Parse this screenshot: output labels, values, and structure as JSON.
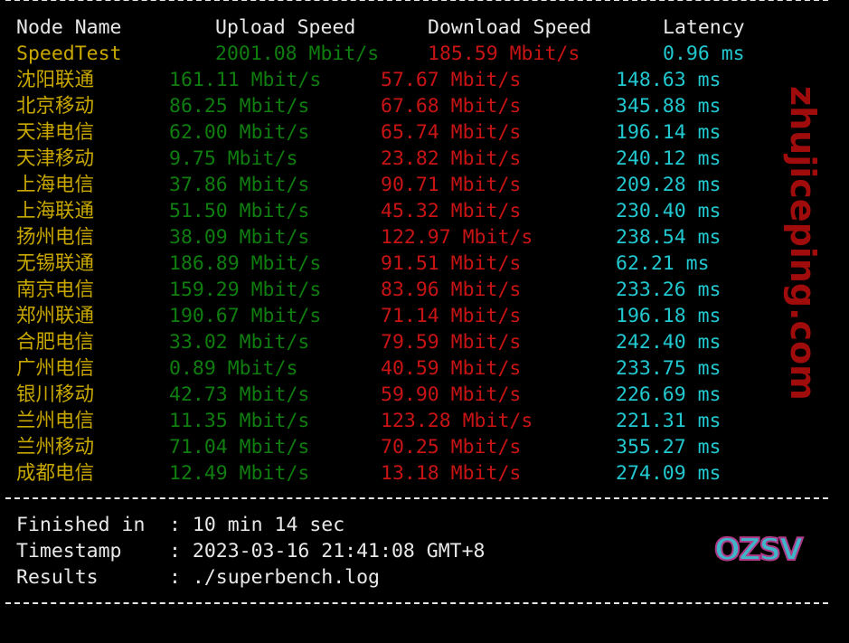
{
  "header": {
    "node": "Node Name",
    "upload": "Upload Speed",
    "download": "Download Speed",
    "latency": "Latency"
  },
  "speedtest": {
    "node": "SpeedTest",
    "upload": "2001.08 Mbit/s",
    "download": "185.59 Mbit/s",
    "latency": "0.96 ms"
  },
  "rows": [
    {
      "node": "沈阳联通",
      "upload": "161.11 Mbit/s",
      "download": "57.67 Mbit/s",
      "latency": "148.63 ms"
    },
    {
      "node": "北京移动",
      "upload": "86.25 Mbit/s",
      "download": "67.68 Mbit/s",
      "latency": "345.88 ms"
    },
    {
      "node": "天津电信",
      "upload": "62.00 Mbit/s",
      "download": "65.74 Mbit/s",
      "latency": "196.14 ms"
    },
    {
      "node": "天津移动",
      "upload": "9.75 Mbit/s",
      "download": "23.82 Mbit/s",
      "latency": "240.12 ms"
    },
    {
      "node": "上海电信",
      "upload": "37.86 Mbit/s",
      "download": "90.71 Mbit/s",
      "latency": "209.28 ms"
    },
    {
      "node": "上海联通",
      "upload": "51.50 Mbit/s",
      "download": "45.32 Mbit/s",
      "latency": "230.40 ms"
    },
    {
      "node": "扬州电信",
      "upload": "38.09 Mbit/s",
      "download": "122.97 Mbit/s",
      "latency": "238.54 ms"
    },
    {
      "node": "无锡联通",
      "upload": "186.89 Mbit/s",
      "download": "91.51 Mbit/s",
      "latency": "62.21 ms"
    },
    {
      "node": "南京电信",
      "upload": "159.29 Mbit/s",
      "download": "83.96 Mbit/s",
      "latency": "233.26 ms"
    },
    {
      "node": "郑州联通",
      "upload": "190.67 Mbit/s",
      "download": "71.14 Mbit/s",
      "latency": "196.18 ms"
    },
    {
      "node": "合肥电信",
      "upload": "33.02 Mbit/s",
      "download": "79.59 Mbit/s",
      "latency": "242.40 ms"
    },
    {
      "node": "广州电信",
      "upload": "0.89 Mbit/s",
      "download": "40.59 Mbit/s",
      "latency": "233.75 ms"
    },
    {
      "node": "银川移动",
      "upload": "42.73 Mbit/s",
      "download": "59.90 Mbit/s",
      "latency": "226.69 ms"
    },
    {
      "node": "兰州电信",
      "upload": "11.35 Mbit/s",
      "download": "123.28 Mbit/s",
      "latency": "221.31 ms"
    },
    {
      "node": "兰州移动",
      "upload": "71.04 Mbit/s",
      "download": "70.25 Mbit/s",
      "latency": "355.27 ms"
    },
    {
      "node": "成都电信",
      "upload": "12.49 Mbit/s",
      "download": "13.18 Mbit/s",
      "latency": "274.09 ms"
    }
  ],
  "footer": {
    "finished_label": "Finished in",
    "finished_value": ": 10 min 14 sec",
    "timestamp_label": "Timestamp",
    "timestamp_value": ": 2023-03-16 21:41:08 GMT+8",
    "results_label": "Results",
    "results_value": ": ./superbench.log"
  },
  "watermark": {
    "text": "zhujiceping.com",
    "logo": "OZSV"
  },
  "colors": {
    "header": "#e8e8e8",
    "node": "#c8a800",
    "upload": "#0f7d0f",
    "download": "#c81414",
    "latency": "#22c8d0"
  }
}
